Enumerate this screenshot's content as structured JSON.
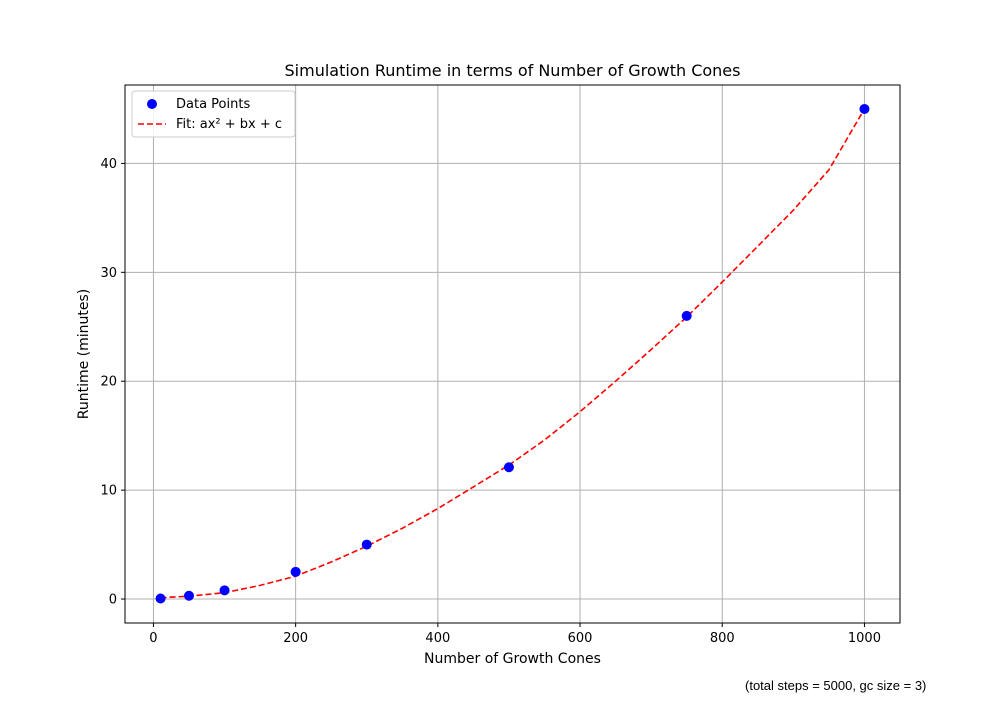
{
  "chart_data": {
    "type": "scatter",
    "title": "Simulation Runtime in terms of Number of Growth Cones",
    "xlabel": "Number of Growth Cones",
    "ylabel": "Runtime (minutes)",
    "xlim": [
      -40,
      1050
    ],
    "ylim": [
      -2.2,
      47.2
    ],
    "x_ticks": [
      0,
      200,
      400,
      600,
      800,
      1000
    ],
    "y_ticks": [
      0,
      10,
      20,
      30,
      40
    ],
    "grid": true,
    "legend_position": "top-left",
    "series": [
      {
        "name": "Data Points",
        "kind": "scatter",
        "color": "#0000ff",
        "x": [
          10,
          50,
          100,
          200,
          300,
          500,
          750,
          1000
        ],
        "y": [
          0.05,
          0.3,
          0.8,
          2.5,
          5.0,
          12.1,
          26.0,
          45.0
        ]
      },
      {
        "name": "Fit: ax² + bx + c",
        "kind": "line",
        "style": "dashed",
        "color": "#ff0000",
        "x": [
          10,
          50,
          100,
          150,
          200,
          250,
          300,
          350,
          400,
          450,
          500,
          550,
          600,
          650,
          700,
          750,
          800,
          850,
          900,
          950,
          1000
        ],
        "y": [
          0.12,
          0.26,
          0.58,
          1.25,
          2.1,
          3.4,
          4.85,
          6.5,
          8.3,
          10.3,
          12.3,
          14.6,
          17.2,
          20.0,
          22.9,
          25.9,
          29.1,
          32.4,
          35.7,
          39.4,
          45.0
        ]
      }
    ]
  },
  "footnote": "(total steps = 5000, gc size = 3)"
}
